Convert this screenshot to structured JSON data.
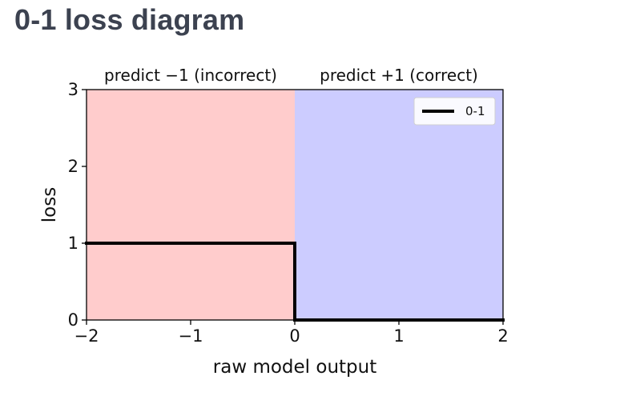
{
  "page": {
    "title": "0-1 loss diagram"
  },
  "chart_data": {
    "type": "line",
    "title": "",
    "xlabel": "raw model output",
    "ylabel": "loss",
    "xlim": [
      -2,
      2
    ],
    "ylim": [
      0,
      3
    ],
    "x_ticks": [
      -2,
      -1,
      0,
      1,
      2
    ],
    "x_tick_labels": [
      "−2",
      "−1",
      "0",
      "1",
      "2"
    ],
    "y_ticks": [
      0,
      1,
      2,
      3
    ],
    "y_tick_labels": [
      "0",
      "1",
      "2",
      "3"
    ],
    "grid": false,
    "legend_position": "upper right",
    "regions": [
      {
        "x_start": -2,
        "x_end": 0,
        "label": "predict −1 (incorrect)",
        "color": "#ffcccc"
      },
      {
        "x_start": 0,
        "x_end": 2,
        "label": "predict +1 (correct)",
        "color": "#ccccff"
      }
    ],
    "series": [
      {
        "name": "0-1",
        "color": "#000000",
        "points": [
          [
            -2,
            1
          ],
          [
            0,
            1
          ],
          [
            0,
            0
          ],
          [
            2,
            0
          ]
        ]
      }
    ]
  }
}
